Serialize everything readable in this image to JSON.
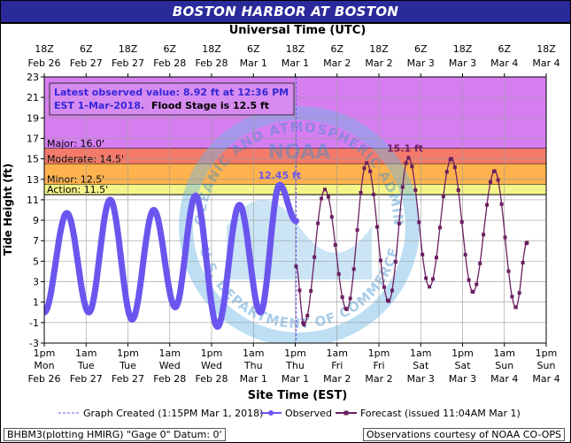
{
  "title": "BOSTON HARBOR AT BOSTON",
  "top_axis_title": "Universal Time (UTC)",
  "bottom_axis_title": "Site Time (EST)",
  "y_axis_title": "Tide Height (ft)",
  "top_ticks": [
    {
      "time": "18Z",
      "date": "Feb 26"
    },
    {
      "time": "6Z",
      "date": "Feb 27"
    },
    {
      "time": "18Z",
      "date": "Feb 27"
    },
    {
      "time": "6Z",
      "date": "Feb 28"
    },
    {
      "time": "18Z",
      "date": "Feb 28"
    },
    {
      "time": "6Z",
      "date": "Mar 1"
    },
    {
      "time": "18Z",
      "date": "Mar 1"
    },
    {
      "time": "6Z",
      "date": "Mar 2"
    },
    {
      "time": "18Z",
      "date": "Mar 2"
    },
    {
      "time": "6Z",
      "date": "Mar 3"
    },
    {
      "time": "18Z",
      "date": "Mar 3"
    },
    {
      "time": "6Z",
      "date": "Mar 4"
    },
    {
      "time": "18Z",
      "date": "Mar 4"
    }
  ],
  "bottom_ticks": [
    {
      "time": "1pm",
      "day": "Mon",
      "date": "Feb 26"
    },
    {
      "time": "1am",
      "day": "Tue",
      "date": "Feb 27"
    },
    {
      "time": "1pm",
      "day": "Tue",
      "date": "Feb 27"
    },
    {
      "time": "1am",
      "day": "Wed",
      "date": "Feb 28"
    },
    {
      "time": "1pm",
      "day": "Wed",
      "date": "Feb 28"
    },
    {
      "time": "1am",
      "day": "Thu",
      "date": "Mar 1"
    },
    {
      "time": "1pm",
      "day": "Thu",
      "date": "Mar 1"
    },
    {
      "time": "1am",
      "day": "Fri",
      "date": "Mar 2"
    },
    {
      "time": "1pm",
      "day": "Fri",
      "date": "Mar 2"
    },
    {
      "time": "1am",
      "day": "Sat",
      "date": "Mar 3"
    },
    {
      "time": "1pm",
      "day": "Sat",
      "date": "Mar 3"
    },
    {
      "time": "1am",
      "day": "Sun",
      "date": "Mar 4"
    },
    {
      "time": "1pm",
      "day": "Sun",
      "date": "Mar 4"
    }
  ],
  "info_box": {
    "line1": "Latest observed value: 8.92 ft at 12:36 PM",
    "line2": "EST 1-Mar-2018.",
    "line2_bold": "Flood Stage is 12.5 ft"
  },
  "legend": {
    "created": "Graph Created (1:15PM Mar 1, 2018)",
    "observed": "Observed",
    "forecast": "Forecast (issued 11:04AM Mar 1)"
  },
  "footer_left": "BHBM3(plotting HMIRG) \"Gage 0\" Datum: 0'",
  "footer_right": "Observations courtesy of NOAA CO-OPS",
  "watermark_top": "NATIONAL OCEANIC AND ATMOSPHERIC ADMINISTRATION",
  "watermark_bottom": "U.S. DEPARTMENT OF COMMERCE",
  "watermark_center": "NOAA",
  "colors": {
    "title_bg": "#2a2a9a",
    "major": "#d67ef0",
    "moderate": "#f47a6a",
    "minor": "#ffb24d",
    "action": "#f4f48a",
    "observed": "#6a56ee",
    "forecast": "#6b1f62"
  },
  "chart_data": {
    "type": "line",
    "x_unit": "hours since 1pm EST Feb 26",
    "xlim": [
      0,
      144
    ],
    "ylim": [
      -3,
      23
    ],
    "y_ticks": [
      -3,
      -1,
      1,
      3,
      5,
      7,
      9,
      11,
      13,
      15,
      17,
      19,
      21,
      23
    ],
    "graph_created_x": 72.25,
    "flood_categories": [
      {
        "label": "Major: 16.0'",
        "value": 16.0,
        "color": "#d67ef0"
      },
      {
        "label": "Moderate: 14.5'",
        "value": 14.5,
        "color": "#f47a6a"
      },
      {
        "label": "Minor: 12.5'",
        "value": 12.5,
        "color": "#ffb24d"
      },
      {
        "label": "Action: 11.5'",
        "value": 11.5,
        "color": "#f4f48a"
      }
    ],
    "annotations": [
      {
        "text": "12.45 ft",
        "x": 67.5,
        "y": 12.45
      },
      {
        "text": "15.1 ft",
        "x": 103.5,
        "y": 15.1
      }
    ],
    "series": [
      {
        "name": "Observed",
        "extrema": [
          {
            "x": 0,
            "y": 0.0
          },
          {
            "x": 6.5,
            "y": 9.7
          },
          {
            "x": 12.8,
            "y": 0.0
          },
          {
            "x": 18.9,
            "y": 11.0
          },
          {
            "x": 25.2,
            "y": -0.7
          },
          {
            "x": 31.4,
            "y": 10.0
          },
          {
            "x": 37.6,
            "y": 0.5
          },
          {
            "x": 43.4,
            "y": 11.4
          },
          {
            "x": 49.7,
            "y": -1.4
          },
          {
            "x": 56.0,
            "y": 10.5
          },
          {
            "x": 62.0,
            "y": 0.0
          },
          {
            "x": 67.5,
            "y": 12.45
          },
          {
            "x": 72.25,
            "y": 8.92
          }
        ]
      },
      {
        "name": "Forecast",
        "extrema": [
          {
            "x": 72.25,
            "y": 4.5
          },
          {
            "x": 74.5,
            "y": -1.2
          },
          {
            "x": 80.5,
            "y": 12.0
          },
          {
            "x": 86.8,
            "y": 0.3
          },
          {
            "x": 92.5,
            "y": 14.6
          },
          {
            "x": 98.8,
            "y": 1.1
          },
          {
            "x": 104.5,
            "y": 15.1
          },
          {
            "x": 110.5,
            "y": 2.5
          },
          {
            "x": 116.8,
            "y": 15.0
          },
          {
            "x": 123.0,
            "y": 2.0
          },
          {
            "x": 129.2,
            "y": 13.8
          },
          {
            "x": 135.3,
            "y": 0.5
          },
          {
            "x": 138.5,
            "y": 6.8
          }
        ]
      }
    ]
  }
}
